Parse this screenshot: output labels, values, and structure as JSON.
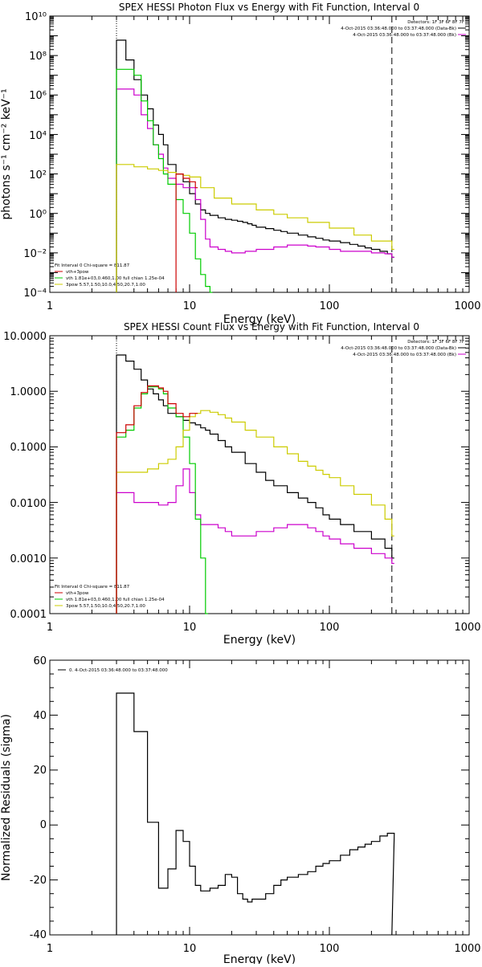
{
  "chart_data": [
    {
      "type": "line",
      "title": "SPEX HESSI Photon Flux vs Energy with Fit Function, Interval 0",
      "xlabel": "Energy (keV)",
      "ylabel": "photons s⁻¹ cm⁻² keV⁻¹",
      "xscale": "log",
      "yscale": "log",
      "xlim": [
        1,
        1000
      ],
      "ylim": [
        0.0001,
        10000000000
      ],
      "xticks": [
        "1",
        "10",
        "100",
        "1000"
      ],
      "yticks": [
        "10⁻⁴",
        "10⁻²",
        "10⁰",
        "10²",
        "10⁴",
        "10⁶",
        "10⁸",
        "10¹⁰"
      ],
      "ytick_values": [
        0.0001,
        0.01,
        1,
        100,
        10000,
        1000000,
        100000000,
        10000000000
      ],
      "legend_topright": [
        "Detectors: 1F 3F 6F 8F 7F",
        "4-Oct-2015 03:36:48.000 to 03:37:48.000 (Data-Bk)",
        "4-Oct-2015 03:36:48.000 to 03:37:48.000 (Bk)"
      ],
      "legend_bottomleft": [
        "Fit Interval 0   Chi-square = 811.87",
        "vth+3pow",
        "vth 1.81e+03,0.460,1.00  full chian 1.25e-04",
        "3pow 5.57,1.50,10.0,4.50,20.7,1.00"
      ],
      "vlines": [
        3,
        280
      ],
      "series": [
        {
          "name": "Data-Bk",
          "color": "#000000",
          "x": [
            3,
            3.5,
            4,
            4.5,
            5,
            5.5,
            6,
            6.5,
            7,
            8,
            9,
            10,
            11,
            12,
            13,
            14,
            16,
            18,
            20,
            22,
            24,
            26,
            28,
            30,
            35,
            40,
            45,
            50,
            60,
            70,
            80,
            90,
            100,
            120,
            140,
            160,
            180,
            200,
            230,
            260,
            280
          ],
          "y": [
            600000000.0,
            60000000.0,
            6000000.0,
            1000000.0,
            200000.0,
            30000.0,
            10000.0,
            3000,
            300,
            100,
            40,
            10,
            3,
            1.5,
            1,
            0.8,
            0.6,
            0.5,
            0.45,
            0.4,
            0.35,
            0.3,
            0.25,
            0.2,
            0.17,
            0.14,
            0.12,
            0.1,
            0.08,
            0.065,
            0.055,
            0.045,
            0.04,
            0.033,
            0.027,
            0.022,
            0.018,
            0.015,
            0.012,
            0.009,
            0.006
          ]
        },
        {
          "name": "Bk",
          "color": "#cc00cc",
          "x": [
            3,
            3.5,
            4,
            4.5,
            5,
            5.5,
            6,
            6.5,
            7,
            8,
            9,
            10,
            11,
            12,
            13,
            14,
            16,
            18,
            20,
            25,
            30,
            40,
            50,
            60,
            70,
            80,
            90,
            100,
            120,
            150,
            200,
            250,
            280
          ],
          "y": [
            2000000.0,
            2000000.0,
            1000000.0,
            100000.0,
            20000.0,
            3000,
            1000,
            200,
            60,
            30,
            20,
            20,
            5,
            0.5,
            0.05,
            0.02,
            0.015,
            0.012,
            0.01,
            0.012,
            0.015,
            0.02,
            0.025,
            0.025,
            0.022,
            0.02,
            0.02,
            0.015,
            0.012,
            0.012,
            0.01,
            0.009,
            0.006
          ]
        },
        {
          "name": "vth",
          "color": "#00cc00",
          "x": [
            3,
            3.5,
            4,
            4.5,
            5,
            5.5,
            6,
            6.5,
            7,
            8,
            9,
            10,
            11,
            12,
            13,
            14
          ],
          "y": [
            20000000.0,
            20000000.0,
            10000000.0,
            500000.0,
            50000.0,
            3000.0,
            600,
            100,
            30,
            5,
            1,
            0.1,
            0.005,
            0.0008,
            0.0002,
            0.0001
          ]
        },
        {
          "name": "3pow",
          "color": "#cccc00",
          "x": [
            3,
            4,
            5,
            6,
            7,
            8,
            9,
            10,
            12,
            15,
            20,
            30,
            40,
            50,
            70,
            100,
            150,
            200,
            280
          ],
          "y": [
            300,
            230,
            180,
            150,
            120,
            100,
            85,
            70,
            20,
            6,
            3,
            1.5,
            0.9,
            0.6,
            0.35,
            0.18,
            0.08,
            0.04,
            0.015
          ]
        },
        {
          "name": "vth+3pow",
          "color": "#cc0000",
          "x": [
            8,
            9,
            10,
            11
          ],
          "y": [
            100,
            60,
            40,
            20
          ]
        }
      ]
    },
    {
      "type": "line",
      "title": "SPEX HESSI Count Flux vs Energy with Fit Function, Interval 0",
      "xlabel": "Energy (keV)",
      "ylabel": "",
      "xscale": "log",
      "yscale": "log",
      "xlim": [
        1,
        1000
      ],
      "ylim": [
        0.0001,
        10
      ],
      "xticks": [
        "1",
        "10",
        "100",
        "1000"
      ],
      "yticks": [
        "0.0001",
        "0.0010",
        "0.0100",
        "0.1000",
        "1.0000",
        "10.0000"
      ],
      "ytick_values": [
        0.0001,
        0.001,
        0.01,
        0.1,
        1,
        10
      ],
      "legend_topright": [
        "Detectors: 1F 3F 6F 8F 7F",
        "4-Oct-2015 03:36:48.000 to 03:37:48.000 (Data-Bk)",
        "4-Oct-2015 03:36:48.000 to 03:37:48.000 (Bk)"
      ],
      "legend_bottomleft": [
        "Fit Interval 0   Chi-square = 811.87",
        "vth+3pow",
        "vth 1.81e+03,0.460,1.00  full chian 1.25e-04",
        "3pow 5.57,1.50,10.0,4.50,20.7,1.00"
      ],
      "vlines": [
        3,
        280
      ],
      "series": [
        {
          "name": "Data-Bk",
          "color": "#000000",
          "x": [
            3,
            3.5,
            4,
            4.5,
            5,
            5.5,
            6,
            6.5,
            7,
            8,
            9,
            10,
            11,
            12,
            13,
            14,
            16,
            18,
            20,
            25,
            30,
            35,
            40,
            50,
            60,
            70,
            80,
            90,
            100,
            120,
            150,
            200,
            250,
            280
          ],
          "y": [
            4.5,
            3.5,
            2.5,
            1.6,
            1.1,
            0.9,
            0.7,
            0.55,
            0.4,
            0.35,
            0.3,
            0.27,
            0.25,
            0.22,
            0.2,
            0.17,
            0.13,
            0.1,
            0.08,
            0.05,
            0.035,
            0.025,
            0.02,
            0.015,
            0.012,
            0.01,
            0.008,
            0.006,
            0.005,
            0.004,
            0.003,
            0.0022,
            0.0015,
            0.001
          ]
        },
        {
          "name": "Bk",
          "color": "#cc00cc",
          "x": [
            3,
            4,
            5,
            6,
            7,
            8,
            9,
            10,
            11,
            12,
            13,
            14,
            16,
            18,
            20,
            25,
            30,
            40,
            50,
            60,
            70,
            80,
            90,
            100,
            120,
            150,
            200,
            250,
            280
          ],
          "y": [
            0.015,
            0.01,
            0.01,
            0.009,
            0.01,
            0.02,
            0.04,
            0.015,
            0.006,
            0.004,
            0.004,
            0.004,
            0.0035,
            0.003,
            0.0025,
            0.0025,
            0.003,
            0.0035,
            0.004,
            0.004,
            0.0035,
            0.003,
            0.0025,
            0.0022,
            0.0018,
            0.0015,
            0.0012,
            0.001,
            0.0008
          ]
        },
        {
          "name": "vth",
          "color": "#00cc00",
          "x": [
            3,
            3.5,
            4,
            4.5,
            5,
            5.5,
            6,
            6.5,
            7,
            8,
            9,
            10,
            11,
            12,
            13
          ],
          "y": [
            0.15,
            0.2,
            0.5,
            0.9,
            1.2,
            1.2,
            1.1,
            0.9,
            0.5,
            0.35,
            0.15,
            0.05,
            0.005,
            0.001,
            0.0001
          ]
        },
        {
          "name": "3pow",
          "color": "#cccc00",
          "x": [
            3,
            4,
            5,
            6,
            7,
            8,
            9,
            10,
            11,
            12,
            13,
            14,
            16,
            18,
            20,
            25,
            30,
            40,
            50,
            60,
            70,
            80,
            90,
            100,
            120,
            150,
            200,
            250,
            280
          ],
          "y": [
            0.035,
            0.035,
            0.04,
            0.05,
            0.06,
            0.1,
            0.2,
            0.35,
            0.4,
            0.45,
            0.45,
            0.42,
            0.38,
            0.33,
            0.28,
            0.2,
            0.15,
            0.1,
            0.075,
            0.055,
            0.045,
            0.038,
            0.032,
            0.028,
            0.02,
            0.014,
            0.009,
            0.005,
            0.0025
          ]
        },
        {
          "name": "vth+3pow",
          "color": "#cc0000",
          "x": [
            3,
            3.5,
            4,
            4.5,
            5,
            5.5,
            6,
            6.5,
            7,
            8,
            9,
            10,
            11
          ],
          "y": [
            0.18,
            0.25,
            0.55,
            0.95,
            1.25,
            1.25,
            1.15,
            1.0,
            0.6,
            0.4,
            0.35,
            0.4,
            0.4
          ]
        }
      ]
    },
    {
      "type": "line",
      "title": "",
      "xlabel": "Energy (keV)",
      "ylabel": "Normalized Residuals (sigma)",
      "xscale": "log",
      "yscale": "linear",
      "xlim": [
        1,
        1000
      ],
      "ylim": [
        -40,
        60
      ],
      "xticks": [
        "1",
        "10",
        "100",
        "1000"
      ],
      "yticks": [
        "-40",
        "-20",
        "0",
        "20",
        "40",
        "60"
      ],
      "ytick_values": [
        -40,
        -20,
        0,
        20,
        40,
        60
      ],
      "legend_topleft": [
        "0.  4-Oct-2015 03:36:48.000 to 03:37:48.000"
      ],
      "series": [
        {
          "name": "0.",
          "color": "#000000",
          "x": [
            3,
            4,
            5,
            6,
            7,
            8,
            9,
            10,
            11,
            12,
            13,
            14,
            16,
            18,
            20,
            22,
            24,
            26,
            28,
            30,
            35,
            40,
            45,
            50,
            60,
            70,
            80,
            90,
            100,
            120,
            140,
            160,
            180,
            200,
            230,
            260,
            280
          ],
          "y": [
            48,
            34,
            1,
            -23,
            -16,
            -2,
            -6,
            -15,
            -22,
            -24,
            -24,
            -23,
            -22,
            -18,
            -19,
            -25,
            -27,
            -28,
            -27,
            -27,
            -25,
            -22,
            -20,
            -19,
            -18,
            -17,
            -15,
            -14,
            -13,
            -11,
            -9,
            -8,
            -7,
            -6,
            -4,
            -3,
            -3
          ]
        }
      ]
    }
  ]
}
